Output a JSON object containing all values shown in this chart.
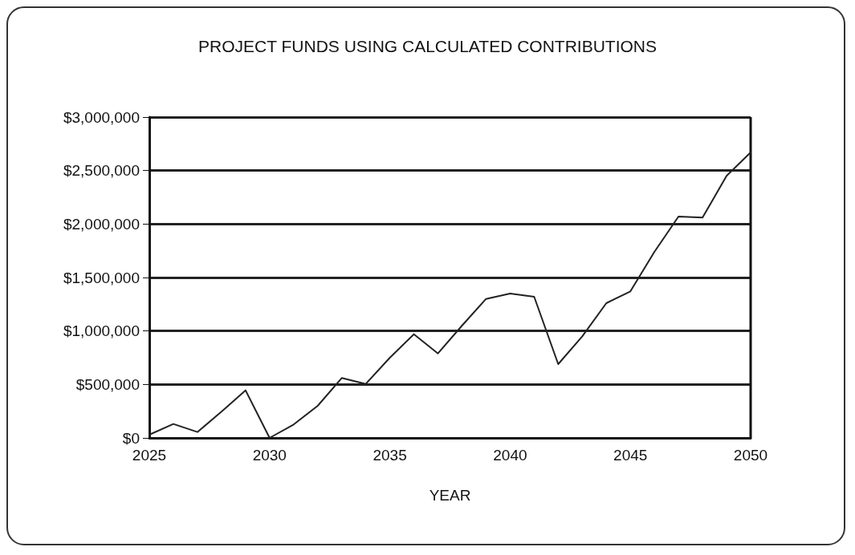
{
  "chart_data": {
    "type": "line",
    "title": "PROJECT FUNDS USING CALCULATED CONTRIBUTIONS",
    "xlabel": "YEAR",
    "x": [
      2025,
      2026,
      2027,
      2028,
      2029,
      2030,
      2031,
      2032,
      2033,
      2034,
      2035,
      2036,
      2037,
      2038,
      2039,
      2040,
      2041,
      2042,
      2043,
      2044,
      2045,
      2046,
      2047,
      2048,
      2049,
      2050
    ],
    "series": [
      {
        "color": "#222222",
        "values": [
          30000,
          130000,
          55000,
          245000,
          445000,
          0,
          125000,
          300000,
          560000,
          505000,
          750000,
          970000,
          790000,
          1050000,
          1300000,
          1350000,
          1320000,
          690000,
          950000,
          1260000,
          1370000,
          1740000,
          2070000,
          2060000,
          2450000,
          2670000
        ]
      }
    ],
    "xlim": [
      2025,
      2050
    ],
    "xticks": [
      2025,
      2030,
      2035,
      2040,
      2045,
      2050
    ],
    "ylim": [
      0,
      3000000
    ],
    "yticks": [
      {
        "value": 0,
        "label": "$0"
      },
      {
        "value": 500000,
        "label": "$500,000"
      },
      {
        "value": 1000000,
        "label": "$1,000,000"
      },
      {
        "value": 1500000,
        "label": "$1,500,000"
      },
      {
        "value": 2000000,
        "label": "$2,000,000"
      },
      {
        "value": 2500000,
        "label": "$2,500,000"
      },
      {
        "value": 3000000,
        "label": "$3,000,000"
      }
    ],
    "grid": "y",
    "marker": "none",
    "line_style": "solid"
  }
}
